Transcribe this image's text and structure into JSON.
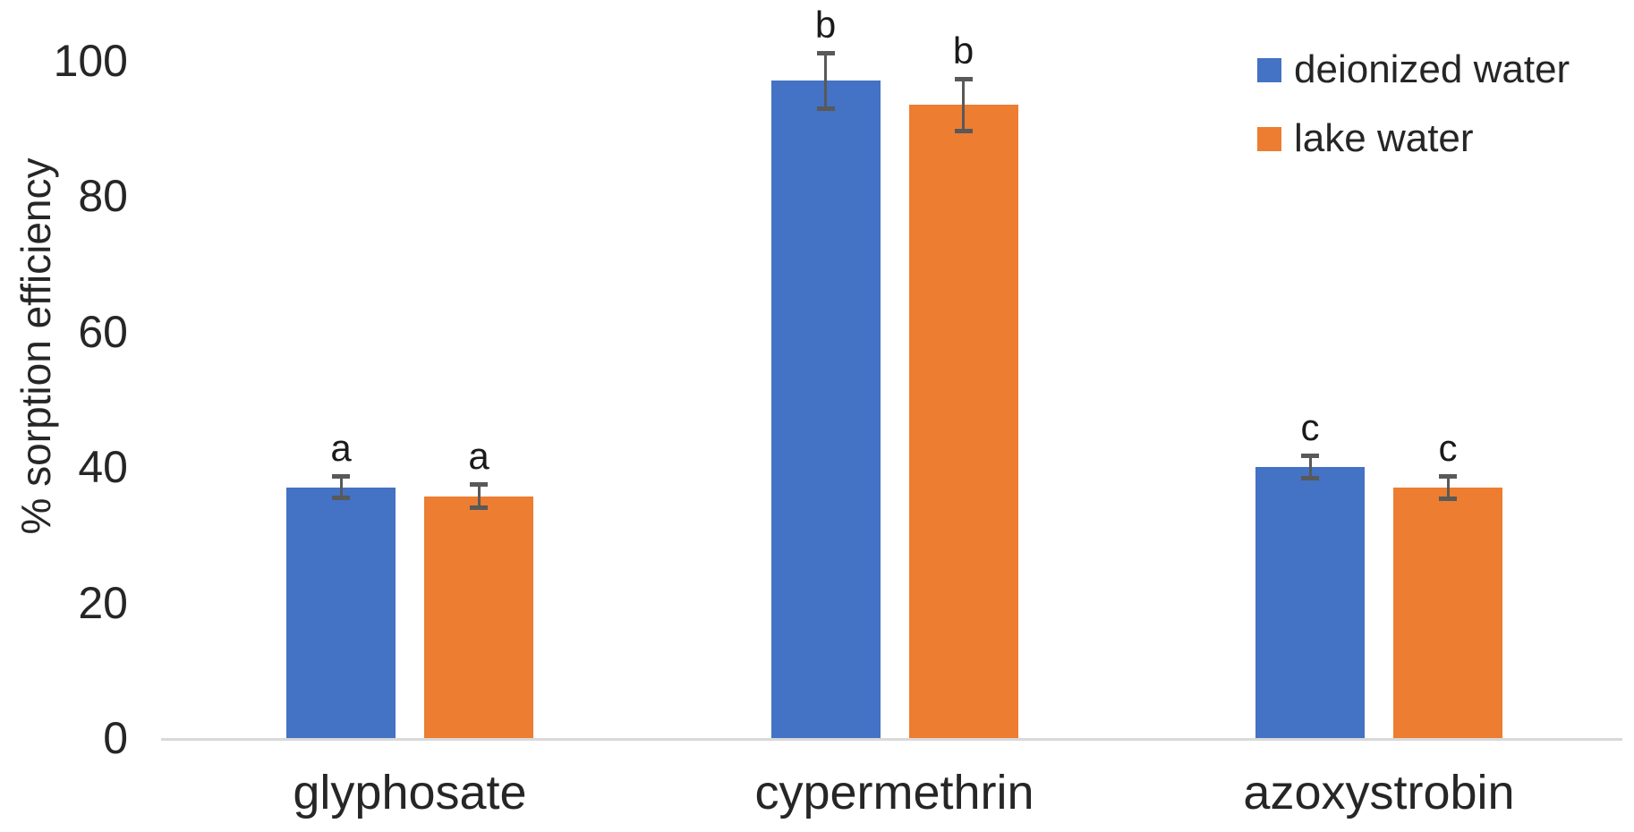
{
  "chart_data": {
    "type": "bar",
    "title": "",
    "xlabel": "",
    "ylabel": "% sorption efficiency",
    "categories": [
      "glyphosate",
      "cypermethrin",
      "azoxystrobin"
    ],
    "series": [
      {
        "name": "deionized water",
        "color": "#4472C4",
        "values": [
          37,
          97,
          40
        ],
        "errors": [
          1.5,
          4.0,
          1.6
        ],
        "significance_letters": [
          "a",
          "b",
          "c"
        ]
      },
      {
        "name": "lake water",
        "color": "#ED7D31",
        "values": [
          35.7,
          93.4,
          37
        ],
        "errors": [
          1.7,
          3.8,
          1.6
        ],
        "significance_letters": [
          "a",
          "b",
          "c"
        ]
      }
    ],
    "ylim": [
      0,
      100
    ],
    "yticks": [
      0,
      20,
      40,
      60,
      80,
      100
    ],
    "grid": false,
    "error_bars": true,
    "legend_position": "top-right",
    "colors": {
      "axis_line": "#d9d9d9",
      "error_bar": "#595959",
      "text": "#262626"
    }
  }
}
